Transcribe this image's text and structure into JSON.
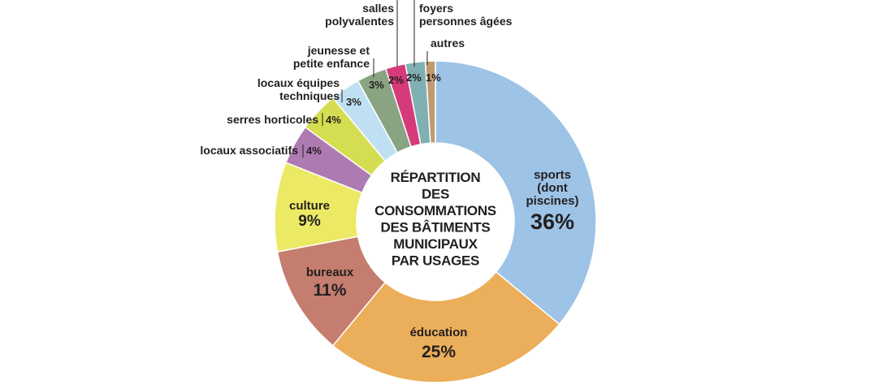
{
  "chart_data": {
    "type": "pie",
    "title": "RÉPARTITION DES CONSOMMATIONS DES BÂTIMENTS MUNICIPAUX PAR USAGES",
    "title_lines": [
      "RÉPARTITION",
      "DES",
      "CONSOMMATIONS",
      "DES BÂTIMENTS",
      "MUNICIPAUX",
      "PAR USAGES"
    ],
    "unit": "%",
    "slices": [
      {
        "key": "sports",
        "label": "sports (dont piscines)",
        "label_lines": [
          "sports",
          "(dont",
          "piscines)"
        ],
        "value": 36,
        "value_label": "36%",
        "color": "#9dc3e6"
      },
      {
        "key": "education",
        "label": "éducation",
        "label_lines": [
          "éducation"
        ],
        "value": 25,
        "value_label": "25%",
        "color": "#ebae5a"
      },
      {
        "key": "bureaux",
        "label": "bureaux",
        "label_lines": [
          "bureaux"
        ],
        "value": 11,
        "value_label": "11%",
        "color": "#c47d6e"
      },
      {
        "key": "culture",
        "label": "culture",
        "label_lines": [
          "culture"
        ],
        "value": 9,
        "value_label": "9%",
        "color": "#ece964"
      },
      {
        "key": "locaux-associatifs",
        "label": "locaux associatifs",
        "label_lines": [
          "locaux associatifs"
        ],
        "value": 4,
        "value_label": "4%",
        "color": "#ad7ab1"
      },
      {
        "key": "serres-horticoles",
        "label": "serres horticoles",
        "label_lines": [
          "serres horticoles"
        ],
        "value": 4,
        "value_label": "4%",
        "color": "#d5dd50"
      },
      {
        "key": "locaux-equipes-techniques",
        "label": "locaux équipes techniques",
        "label_lines": [
          "locaux équipes",
          "techniques"
        ],
        "value": 3,
        "value_label": "3%",
        "color": "#bfe0f2"
      },
      {
        "key": "jeunesse",
        "label": "jeunesse et petite enfance",
        "label_lines": [
          "jeunesse et",
          "petite enfance"
        ],
        "value": 3,
        "value_label": "3%",
        "color": "#8aa383"
      },
      {
        "key": "salles-polyvalentes",
        "label": "salles polyvalentes",
        "label_lines": [
          "salles",
          "polyvalentes"
        ],
        "value": 2,
        "value_label": "2%",
        "color": "#d53a7a"
      },
      {
        "key": "foyers",
        "label": "foyers personnes âgées",
        "label_lines": [
          "foyers",
          "personnes âgées"
        ],
        "value": 2,
        "value_label": "2%",
        "color": "#7fb0b3"
      },
      {
        "key": "autres",
        "label": "autres",
        "label_lines": [
          "autres"
        ],
        "value": 1,
        "value_label": "1%",
        "color": "#bf9a72"
      }
    ],
    "legend": "none"
  }
}
